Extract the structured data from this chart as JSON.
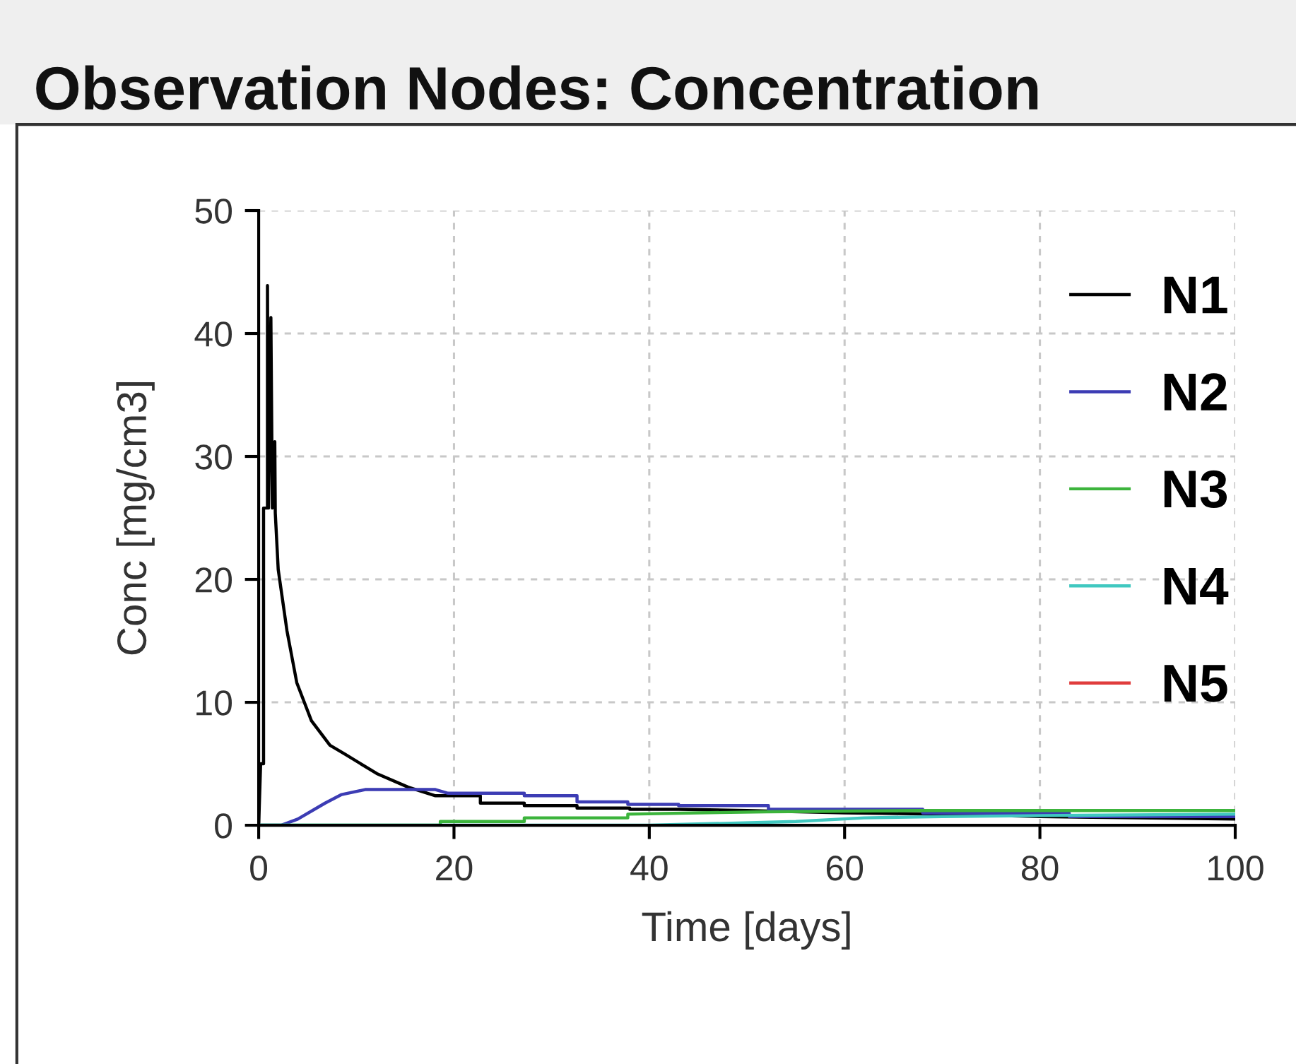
{
  "chart_data": {
    "type": "line",
    "title": "Observation Nodes: Concentration",
    "xlabel": "Time [days]",
    "ylabel": "Conc [mg/cm3]",
    "xlim": [
      0,
      100
    ],
    "ylim": [
      0,
      50
    ],
    "xticks": [
      0,
      20,
      40,
      60,
      80,
      100
    ],
    "yticks": [
      0,
      10,
      20,
      30,
      40,
      50
    ],
    "grid": true,
    "legend": "top right",
    "line_style": "solid",
    "series": [
      {
        "name": "N1",
        "color": "#000000",
        "x": [
          0,
          0.2,
          0.5,
          0.5,
          0.9,
          0.9,
          1.0,
          1.25,
          1.4,
          1.65,
          1.7,
          2.0,
          2.9,
          3.9,
          5.4,
          7.3,
          8.8,
          12.1,
          15.3,
          18.1,
          22.7,
          22.7,
          27.2,
          27.2,
          32.6,
          32.6,
          38,
          38,
          43,
          50,
          60,
          70,
          80,
          90,
          100
        ],
        "values": [
          0,
          5.0,
          5.0,
          25.8,
          25.8,
          43.9,
          25.8,
          41.3,
          25.8,
          31.2,
          25.4,
          20.8,
          15.8,
          11.6,
          8.5,
          6.5,
          5.8,
          4.2,
          3.1,
          2.4,
          2.4,
          1.8,
          1.8,
          1.6,
          1.6,
          1.4,
          1.4,
          1.3,
          1.3,
          1.2,
          1.0,
          0.9,
          0.7,
          0.6,
          0.5
        ]
      },
      {
        "name": "N2",
        "color": "#3c3cb4",
        "x": [
          0,
          2.3,
          4,
          6.8,
          8.5,
          10.9,
          18.1,
          19.4,
          27.2,
          27.2,
          32.6,
          32.6,
          37.8,
          37.8,
          43,
          43,
          52.2,
          52.2,
          68,
          68,
          83,
          83,
          100
        ],
        "values": [
          0,
          0,
          0.5,
          1.8,
          2.5,
          2.9,
          2.9,
          2.6,
          2.6,
          2.4,
          2.4,
          1.9,
          1.9,
          1.7,
          1.7,
          1.6,
          1.6,
          1.3,
          1.3,
          1.0,
          1.0,
          0.7,
          0.7
        ]
      },
      {
        "name": "N3",
        "color": "#3cb43c",
        "x": [
          0,
          18.6,
          18.6,
          27.2,
          27.2,
          37.8,
          37.8,
          52,
          68,
          85,
          100
        ],
        "values": [
          0,
          0,
          0.3,
          0.3,
          0.6,
          0.6,
          0.9,
          1.1,
          1.2,
          1.2,
          1.2
        ]
      },
      {
        "name": "N4",
        "color": "#40c8c0",
        "x": [
          0,
          40,
          45,
          55,
          62,
          70,
          82,
          100
        ],
        "values": [
          0,
          0,
          0.1,
          0.3,
          0.6,
          0.7,
          0.8,
          0.9
        ]
      },
      {
        "name": "N5",
        "color": "#e03c3c"
      }
    ]
  }
}
